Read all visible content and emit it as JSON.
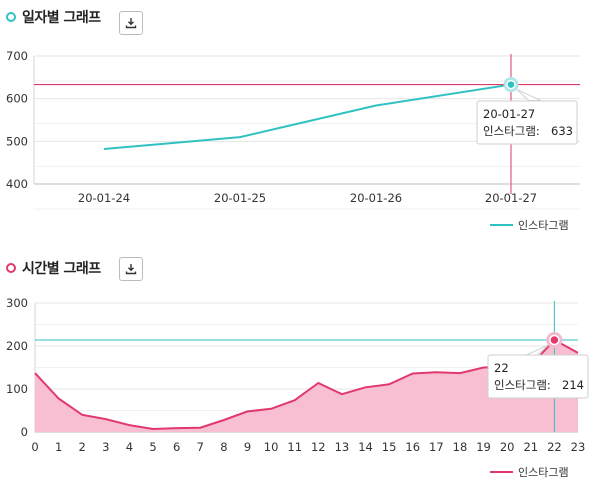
{
  "charts": [
    {
      "title": "일자별 그래프",
      "accent": "#30c1c3",
      "chart_data": {
        "type": "line",
        "categories": [
          "20-01-24",
          "20-01-25",
          "20-01-26",
          "20-01-27"
        ],
        "series": [
          {
            "name": "인스타그램",
            "values": [
              482,
              510,
              584,
              633
            ]
          }
        ],
        "ylim": [
          400,
          700
        ],
        "yticks": [
          "700",
          "600",
          "500",
          "400"
        ],
        "grid": true,
        "legend": "bottom-right",
        "crosshair": {
          "x": "20-01-27",
          "y": 633
        },
        "tooltip": {
          "x_label": "20-01-27",
          "series_label": "인스타그램:",
          "value": "633"
        }
      }
    },
    {
      "title": "시간별 그래프",
      "accent": "#e2396d",
      "chart_data": {
        "type": "area",
        "categories": [
          "0",
          "1",
          "2",
          "3",
          "4",
          "5",
          "6",
          "7",
          "8",
          "9",
          "10",
          "11",
          "12",
          "13",
          "14",
          "15",
          "16",
          "17",
          "18",
          "19",
          "20",
          "21",
          "22",
          "23"
        ],
        "series": [
          {
            "name": "인스타그램",
            "values": [
              137,
              78,
              40,
              30,
              16,
              7,
              9,
              10,
              28,
              48,
              54,
              74,
              114,
              88,
              104,
              111,
              136,
              139,
              137,
              150,
              152,
              155,
              214,
              184
            ]
          }
        ],
        "ylim": [
          0,
          300
        ],
        "yticks": [
          "300",
          "200",
          "100",
          "0"
        ],
        "grid": true,
        "legend": "bottom-right",
        "crosshair": {
          "x": "22",
          "y": 214
        },
        "tooltip": {
          "x_label": "22",
          "series_label": "인스타그램:",
          "value": "214"
        }
      }
    }
  ]
}
